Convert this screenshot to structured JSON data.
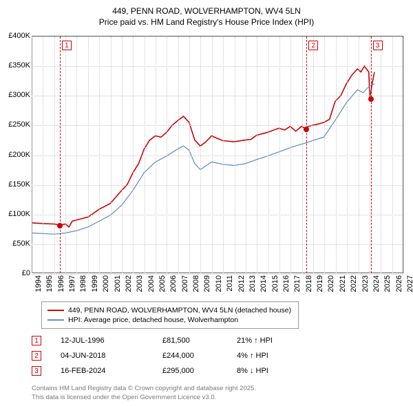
{
  "title": {
    "line1": "449, PENN ROAD, WOLVERHAMPTON, WV4 5LN",
    "line2": "Price paid vs. HM Land Registry's House Price Index (HPI)"
  },
  "chart": {
    "type": "line",
    "background_color": "#ffffff",
    "grid_color": "#c8c8c8",
    "axis_color": "#666666",
    "x_years": [
      1994,
      1995,
      1996,
      1997,
      1998,
      1999,
      2000,
      2001,
      2002,
      2003,
      2004,
      2005,
      2006,
      2007,
      2008,
      2009,
      2010,
      2011,
      2012,
      2013,
      2014,
      2015,
      2016,
      2017,
      2018,
      2019,
      2020,
      2021,
      2022,
      2023,
      2024,
      2025,
      2026,
      2027
    ],
    "xlim": [
      1994,
      2027
    ],
    "y_ticks": [
      0,
      50000,
      100000,
      150000,
      200000,
      250000,
      300000,
      350000,
      400000
    ],
    "y_tick_labels": [
      "£0",
      "£50K",
      "£100K",
      "£150K",
      "£200K",
      "£250K",
      "£300K",
      "£350K",
      "£400K"
    ],
    "ylim": [
      0,
      400000
    ],
    "label_fontsize": 11,
    "series": [
      {
        "name": "449, PENN ROAD, WOLVERHAMPTON, WV4 5LN (detached house)",
        "color": "#cc0000",
        "width": 1.6,
        "points": [
          [
            1994.0,
            85000
          ],
          [
            1995.0,
            84000
          ],
          [
            1996.0,
            83000
          ],
          [
            1996.5,
            81500
          ],
          [
            1997.0,
            83000
          ],
          [
            1997.3,
            78000
          ],
          [
            1997.6,
            88000
          ],
          [
            1998.0,
            90000
          ],
          [
            1999.0,
            95000
          ],
          [
            2000.0,
            108000
          ],
          [
            2001.0,
            118000
          ],
          [
            2002.0,
            140000
          ],
          [
            2002.5,
            150000
          ],
          [
            2003.0,
            170000
          ],
          [
            2003.5,
            185000
          ],
          [
            2004.0,
            210000
          ],
          [
            2004.5,
            225000
          ],
          [
            2005.0,
            232000
          ],
          [
            2005.5,
            230000
          ],
          [
            2006.0,
            238000
          ],
          [
            2006.5,
            250000
          ],
          [
            2007.0,
            258000
          ],
          [
            2007.5,
            265000
          ],
          [
            2008.0,
            255000
          ],
          [
            2008.5,
            225000
          ],
          [
            2009.0,
            215000
          ],
          [
            2009.5,
            222000
          ],
          [
            2010.0,
            232000
          ],
          [
            2010.5,
            228000
          ],
          [
            2011.0,
            224000
          ],
          [
            2012.0,
            222000
          ],
          [
            2013.0,
            225000
          ],
          [
            2013.5,
            226000
          ],
          [
            2014.0,
            233000
          ],
          [
            2015.0,
            238000
          ],
          [
            2016.0,
            245000
          ],
          [
            2016.5,
            242000
          ],
          [
            2017.0,
            248000
          ],
          [
            2017.5,
            240000
          ],
          [
            2018.0,
            248000
          ],
          [
            2018.4,
            244000
          ],
          [
            2018.6,
            248000
          ],
          [
            2019.0,
            250000
          ],
          [
            2019.5,
            252000
          ],
          [
            2020.0,
            255000
          ],
          [
            2020.5,
            260000
          ],
          [
            2021.0,
            290000
          ],
          [
            2021.5,
            300000
          ],
          [
            2022.0,
            320000
          ],
          [
            2022.5,
            335000
          ],
          [
            2023.0,
            345000
          ],
          [
            2023.3,
            340000
          ],
          [
            2023.6,
            350000
          ],
          [
            2024.0,
            340000
          ],
          [
            2024.1,
            295000
          ],
          [
            2024.3,
            320000
          ],
          [
            2024.5,
            340000
          ]
        ]
      },
      {
        "name": "HPI: Average price, detached house, Wolverhampton",
        "color": "#6a8fc5",
        "width": 1.3,
        "points": [
          [
            1994.0,
            68000
          ],
          [
            1995.0,
            67000
          ],
          [
            1996.0,
            66000
          ],
          [
            1997.0,
            68000
          ],
          [
            1998.0,
            72000
          ],
          [
            1999.0,
            78000
          ],
          [
            2000.0,
            88000
          ],
          [
            2001.0,
            98000
          ],
          [
            2002.0,
            115000
          ],
          [
            2003.0,
            140000
          ],
          [
            2004.0,
            170000
          ],
          [
            2005.0,
            188000
          ],
          [
            2006.0,
            198000
          ],
          [
            2007.0,
            210000
          ],
          [
            2007.5,
            215000
          ],
          [
            2008.0,
            208000
          ],
          [
            2008.5,
            185000
          ],
          [
            2009.0,
            175000
          ],
          [
            2010.0,
            188000
          ],
          [
            2011.0,
            184000
          ],
          [
            2012.0,
            182000
          ],
          [
            2013.0,
            185000
          ],
          [
            2014.0,
            192000
          ],
          [
            2015.0,
            198000
          ],
          [
            2016.0,
            205000
          ],
          [
            2017.0,
            212000
          ],
          [
            2018.0,
            218000
          ],
          [
            2018.4,
            220000
          ],
          [
            2019.0,
            224000
          ],
          [
            2020.0,
            230000
          ],
          [
            2021.0,
            258000
          ],
          [
            2022.0,
            288000
          ],
          [
            2023.0,
            310000
          ],
          [
            2023.5,
            305000
          ],
          [
            2024.0,
            315000
          ],
          [
            2024.5,
            320000
          ]
        ]
      }
    ],
    "markers": [
      {
        "n": "1",
        "year": 1996.5,
        "price": 81500,
        "color": "#cc0000"
      },
      {
        "n": "2",
        "year": 2018.4,
        "price": 244000,
        "color": "#cc0000"
      },
      {
        "n": "3",
        "year": 2024.1,
        "price": 295000,
        "color": "#cc0000"
      }
    ]
  },
  "legend": {
    "items": [
      {
        "color": "#cc0000",
        "label": "449, PENN ROAD, WOLVERHAMPTON, WV4 5LN (detached house)"
      },
      {
        "color": "#6a8fc5",
        "label": "HPI: Average price, detached house, Wolverhampton"
      }
    ]
  },
  "transactions": [
    {
      "n": "1",
      "color": "#cc0000",
      "date": "12-JUL-1996",
      "price": "£81,500",
      "diff": "21% ↑ HPI"
    },
    {
      "n": "2",
      "color": "#cc0000",
      "date": "04-JUN-2018",
      "price": "£244,000",
      "diff": "4% ↑ HPI"
    },
    {
      "n": "3",
      "color": "#cc0000",
      "date": "16-FEB-2024",
      "price": "£295,000",
      "diff": "8% ↓ HPI"
    }
  ],
  "footer": {
    "line1": "Contains HM Land Registry data © Crown copyright and database right 2025.",
    "line2": "This data is licensed under the Open Government Licence v3.0."
  }
}
